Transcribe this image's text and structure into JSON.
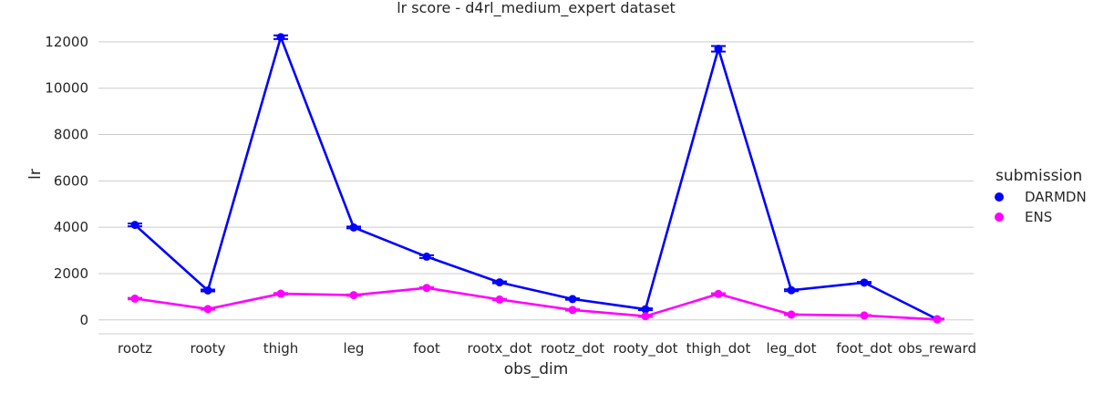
{
  "chart_data": {
    "type": "line",
    "title": "lr score - d4rl_medium_expert dataset",
    "xlabel": "obs_dim",
    "ylabel": "lr",
    "categories": [
      "rootz",
      "rooty",
      "thigh",
      "leg",
      "foot",
      "rootx_dot",
      "rootz_dot",
      "rooty_dot",
      "thigh_dot",
      "leg_dot",
      "foot_dot",
      "obs_reward"
    ],
    "yticks": [
      "0",
      "2000",
      "4000",
      "6000",
      "8000",
      "10000",
      "12000"
    ],
    "ylim": [
      -600,
      12350
    ],
    "grid": true,
    "legend": {
      "title": "submission",
      "position": "right"
    },
    "series": [
      {
        "name": "DARMDN",
        "color": "#0000ff",
        "values": [
          4100,
          1270,
          12200,
          3990,
          2730,
          1620,
          900,
          460,
          11700,
          1280,
          1610,
          30
        ],
        "err": [
          60,
          40,
          80,
          40,
          60,
          40,
          30,
          40,
          120,
          40,
          30,
          20
        ]
      },
      {
        "name": "ENS",
        "color": "#ff00ff",
        "values": [
          920,
          470,
          1130,
          1070,
          1380,
          880,
          430,
          160,
          1120,
          230,
          190,
          20
        ],
        "err": [
          30,
          30,
          30,
          30,
          30,
          30,
          30,
          30,
          30,
          20,
          20,
          10
        ]
      }
    ]
  }
}
